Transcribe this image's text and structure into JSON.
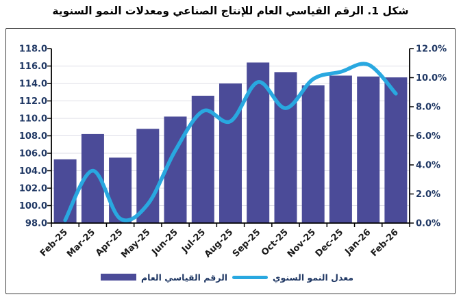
{
  "title": "شكل 1. الرقم القياسي العام للإنتاج الصناعي ومعدلات النمو السنوية",
  "legend": {
    "bar_label": "الرقم القياسي العام",
    "line_label": "معدل النمو السنوي"
  },
  "colors": {
    "bar": "#4B4B98",
    "line": "#29A8E0",
    "grid": "#DCDCE6",
    "axis_line": "#000000",
    "axis_text": "#203864",
    "xlabel_text": "#1A1A1A",
    "frame_border": "#3A3A3A"
  },
  "chart_data": {
    "type": "combo",
    "title": "شكل 1. الرقم القياسي العام للإنتاج الصناعي ومعدلات النمو السنوية",
    "categories": [
      "Feb-25",
      "Mar-25",
      "Apr-25",
      "May-25",
      "Jun-25",
      "Jul-25",
      "Aug-25",
      "Sep-25",
      "Oct-25",
      "Nov-25",
      "Dec-25",
      "Jan-26",
      "Feb-26"
    ],
    "series": [
      {
        "name": "الرقم القياسي العام",
        "mark": "bar",
        "axis": "left",
        "color": "#4B4B98",
        "values": [
          105.3,
          108.2,
          105.5,
          108.8,
          110.2,
          112.6,
          114.0,
          116.4,
          115.3,
          113.8,
          114.9,
          114.8,
          114.7
        ]
      },
      {
        "name": "معدل النمو السنوي",
        "mark": "line",
        "axis": "right",
        "color": "#29A8E0",
        "smooth": true,
        "values": [
          0.2,
          3.6,
          0.3,
          1.3,
          5.0,
          7.7,
          7.0,
          9.7,
          7.9,
          9.9,
          10.4,
          10.9,
          8.9
        ]
      }
    ],
    "left_axis": {
      "min": 98.0,
      "max": 118.0,
      "step": 2.0,
      "tick_labels": [
        "118.0",
        "116.0",
        "114.0",
        "112.0",
        "110.0",
        "108.0",
        "106.0",
        "104.0",
        "102.0",
        "100.0",
        "98.0"
      ]
    },
    "right_axis": {
      "min": 0.0,
      "max": 12.0,
      "step": 2.0,
      "tick_labels": [
        "12.0%",
        "10.0%",
        "8.0%",
        "6.0%",
        "4.0%",
        "2.0%",
        "0.0%"
      ]
    },
    "grid": true,
    "legend_position": "bottom",
    "x_tick_rotation": -45
  }
}
